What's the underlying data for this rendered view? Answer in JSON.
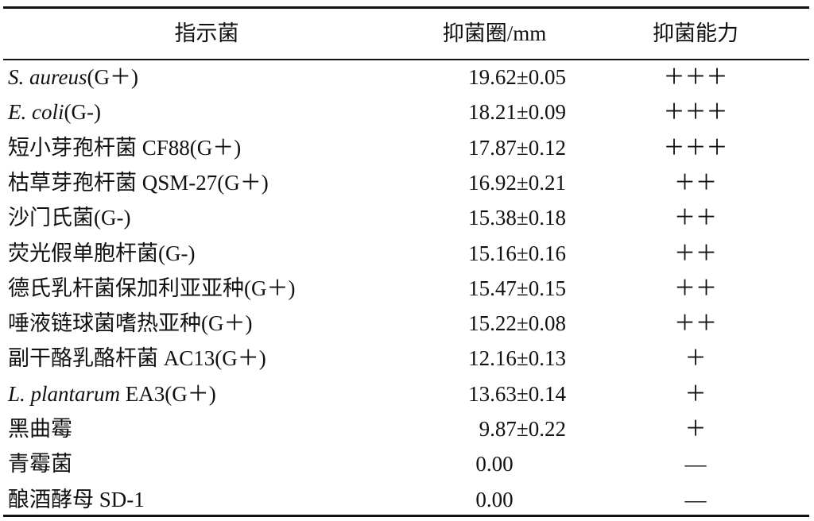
{
  "table": {
    "header": [
      "指示菌",
      "抑菌圈/mm",
      "抑菌能力"
    ],
    "rows": [
      [
        {
          "italic": "S. aureus",
          "rest": "(G＋)"
        },
        "19.62±0.05",
        "＋＋＋"
      ],
      [
        {
          "italic": "E. coli",
          "rest": "(G-)"
        },
        "18.21±0.09",
        "＋＋＋"
      ],
      [
        "短小芽孢杆菌 CF88(G＋)",
        "17.87±0.12",
        "＋＋＋"
      ],
      [
        "枯草芽孢杆菌 QSM-27(G＋)",
        "16.92±0.21",
        "＋＋"
      ],
      [
        "沙门氏菌(G-)",
        "15.38±0.18",
        "＋＋"
      ],
      [
        "荧光假单胞杆菌(G-)",
        "15.16±0.16",
        "＋＋"
      ],
      [
        "德氏乳杆菌保加利亚亚种(G＋)",
        "15.47±0.15",
        "＋＋"
      ],
      [
        "唾液链球菌嗜热亚种(G＋)",
        "15.22±0.08",
        "＋＋"
      ],
      [
        "副干酪乳酪杆菌 AC13(G＋)",
        "12.16±0.13",
        "＋"
      ],
      [
        {
          "italic": "L. plantarum",
          "rest": " EA3(G＋)"
        },
        "13.63±0.14",
        "＋"
      ],
      [
        "黑曲霉",
        "9.87±0.22",
        "＋"
      ],
      [
        "青霉菌",
        "0.00",
        "—"
      ],
      [
        "酿酒酵母 SD-1",
        "0.00",
        "—"
      ]
    ]
  }
}
